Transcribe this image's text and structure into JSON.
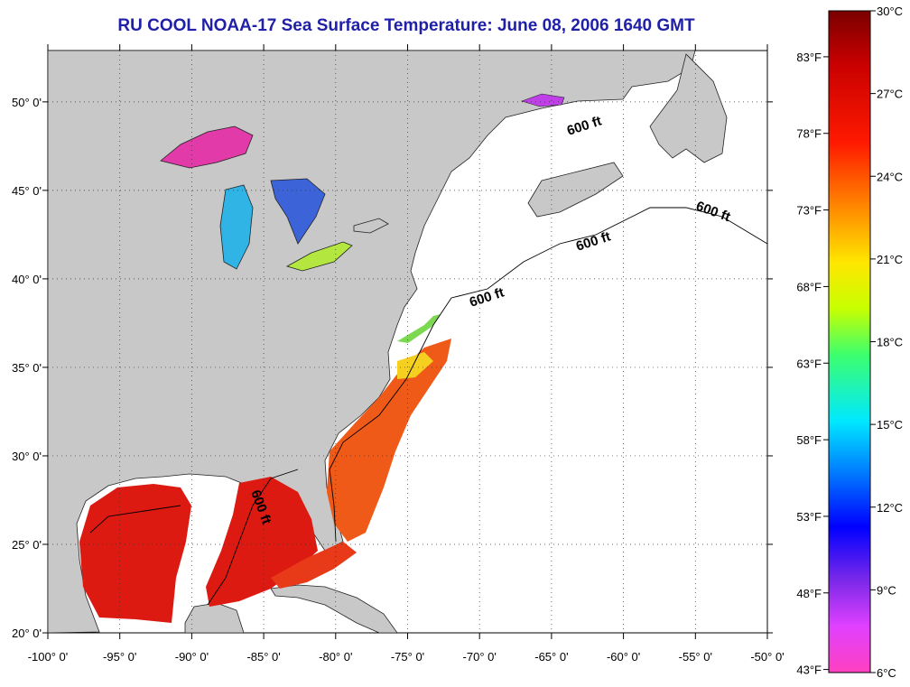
{
  "title": "RU COOL  NOAA-17  Sea Surface Temperature:  June 08, 2006 1640 GMT",
  "map": {
    "lon_labels": [
      "-100° 0'",
      "-95° 0'",
      "-90° 0'",
      "-85° 0'",
      "-80° 0'",
      "-75° 0'",
      "-70° 0'",
      "-65° 0'",
      "-60° 0'",
      "-55° 0'",
      "-50° 0'"
    ],
    "lat_labels": [
      "50° 0'",
      "45° 0'",
      "40° 0'",
      "35° 0'",
      "30° 0'",
      "25° 0'",
      "20° 0'"
    ],
    "isobath_labels": [
      "600 ft",
      "600 ft",
      "600 ft",
      "600 ft",
      "600 ft"
    ],
    "colors": {
      "land": "#c8c8c8",
      "ocean": "#ffffff",
      "warm": "#dd1a12",
      "hot": "#b80a08",
      "orange": "#f05a18"
    }
  },
  "colorbar": {
    "celsius": [
      "30°C",
      "27°C",
      "24°C",
      "21°C",
      "18°C",
      "15°C",
      "12°C",
      "9°C",
      "6°C"
    ],
    "fahrenheit": [
      "83°F",
      "78°F",
      "73°F",
      "68°F",
      "63°F",
      "58°F",
      "53°F",
      "48°F",
      "43°F"
    ]
  }
}
